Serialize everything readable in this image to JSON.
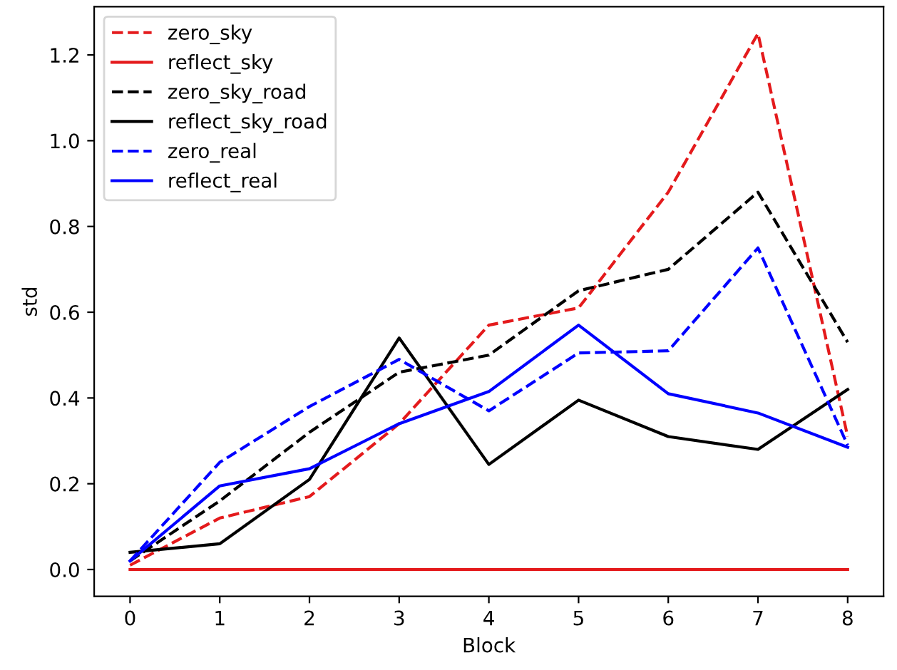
{
  "chart_data": {
    "type": "line",
    "xlabel": "Block",
    "ylabel": "std",
    "x": [
      0,
      1,
      2,
      3,
      4,
      5,
      6,
      7,
      8
    ],
    "series": [
      {
        "name": "zero_sky",
        "color": "#e41a1c",
        "line_style": "dashed",
        "values": [
          0.01,
          0.12,
          0.17,
          0.34,
          0.57,
          0.61,
          0.88,
          1.25,
          0.31
        ]
      },
      {
        "name": "reflect_sky",
        "color": "#e41a1c",
        "line_style": "solid",
        "values": [
          0,
          0,
          0,
          0,
          0,
          0,
          0,
          0,
          0
        ]
      },
      {
        "name": "zero_sky_road",
        "color": "#000000",
        "line_style": "dashed",
        "values": [
          0.02,
          0.16,
          0.32,
          0.46,
          0.5,
          0.65,
          0.7,
          0.88,
          0.53
        ]
      },
      {
        "name": "reflect_sky_road",
        "color": "#000000",
        "line_style": "solid",
        "values": [
          0.04,
          0.06,
          0.21,
          0.54,
          0.245,
          0.395,
          0.31,
          0.28,
          0.42
        ]
      },
      {
        "name": "zero_real",
        "color": "#0000ff",
        "line_style": "dashed",
        "values": [
          0.02,
          0.25,
          0.38,
          0.49,
          0.37,
          0.505,
          0.51,
          0.75,
          0.29
        ]
      },
      {
        "name": "reflect_real",
        "color": "#0000ff",
        "line_style": "solid",
        "values": [
          0.02,
          0.195,
          0.235,
          0.34,
          0.415,
          0.57,
          0.41,
          0.365,
          0.285
        ]
      }
    ],
    "xlim": [
      -0.4,
      8.4
    ],
    "ylim": [
      -0.0625,
      1.3125
    ],
    "xticks": [
      0,
      1,
      2,
      3,
      4,
      5,
      6,
      7,
      8
    ],
    "yticks": [
      {
        "value": 0,
        "label": "0.0"
      },
      {
        "value": 0.2,
        "label": "0.2"
      },
      {
        "value": 0.4,
        "label": "0.4"
      },
      {
        "value": 0.6,
        "label": "0.6"
      },
      {
        "value": 0.8,
        "label": "0.8"
      },
      {
        "value": 1.0,
        "label": "1.0"
      },
      {
        "value": 1.2,
        "label": "1.2"
      }
    ],
    "grid": false,
    "legend": "top left",
    "marker": "none"
  }
}
